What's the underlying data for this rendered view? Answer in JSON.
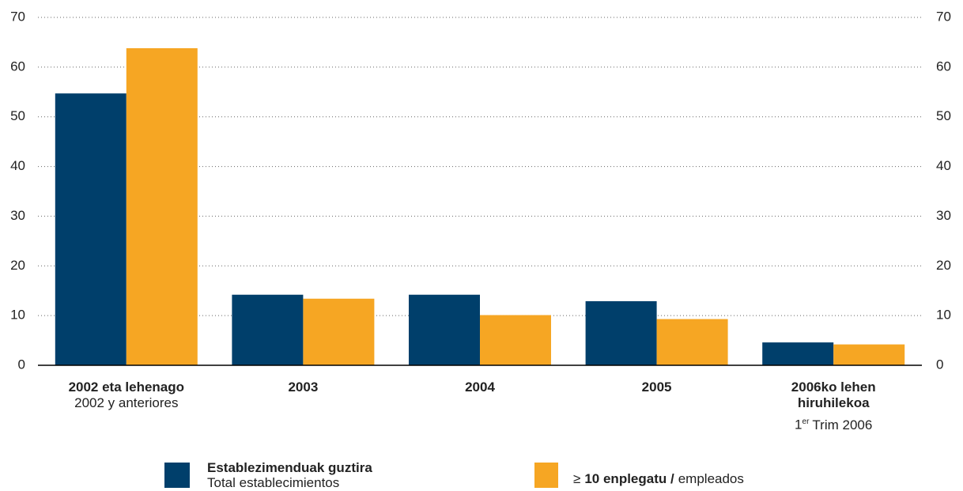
{
  "chart_data": {
    "type": "bar",
    "categories": [
      "2002 eta lehenago",
      "2003",
      "2004",
      "2005",
      "2006ko lehen hiruhilekoa"
    ],
    "sublabels": [
      "2002 y anteriores",
      null,
      null,
      null,
      [
        "1",
        "er",
        "Trim 2006"
      ]
    ],
    "series": [
      {
        "name": "Establezimenduak guztira",
        "name_sub": "Total establecimientos",
        "color": "#003f6b",
        "values": [
          54.7,
          14.2,
          14.2,
          12.9,
          4.6
        ]
      },
      {
        "name_prefix": "≥",
        "name": "10 enplegatu /",
        "name_sub": "empleados",
        "color": "#f6a623",
        "values": [
          63.8,
          13.4,
          10.1,
          9.3,
          4.2
        ]
      }
    ],
    "ylim": [
      0,
      70
    ],
    "yticks": [
      0,
      10,
      20,
      30,
      40,
      50,
      60,
      70
    ],
    "y2lim": [
      0,
      70
    ],
    "y2ticks": [
      0,
      10,
      20,
      30,
      40,
      50,
      60,
      70
    ],
    "grid": true
  }
}
